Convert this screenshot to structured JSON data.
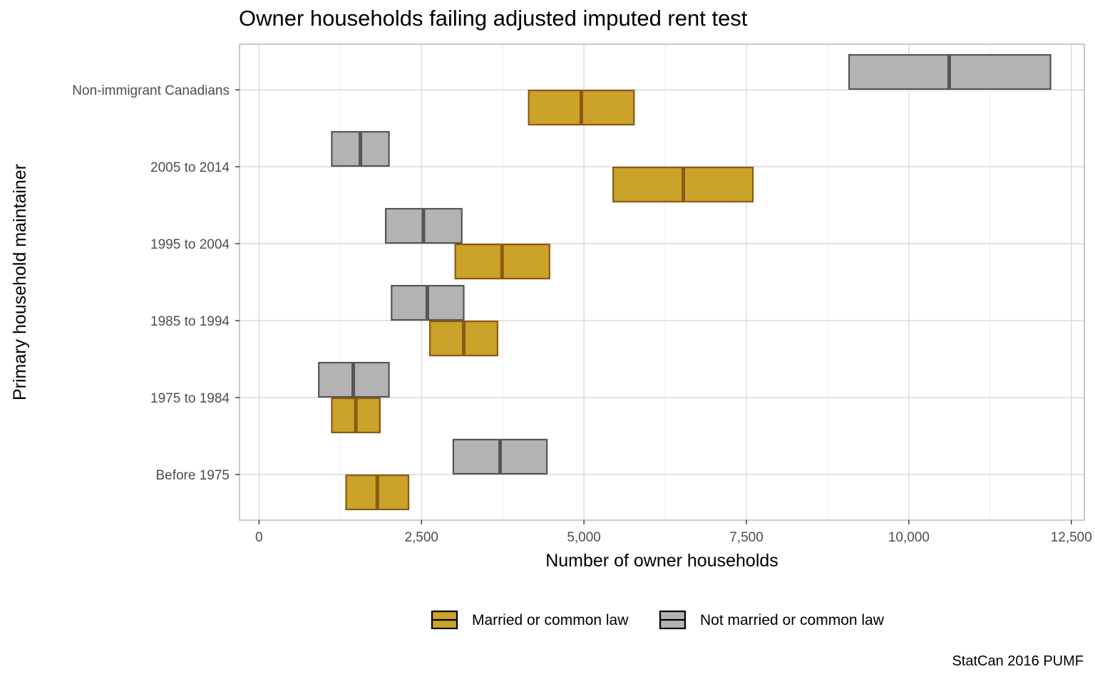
{
  "chart_data": {
    "type": "boxplot",
    "title": "Owner households failing adjusted imputed rent test",
    "xlabel": "Number of owner households",
    "ylabel": "Primary household maintainer",
    "caption": "StatCan 2016 PUMF",
    "xlim": [
      -300,
      12700
    ],
    "x_ticks": [
      0,
      2500,
      5000,
      7500,
      10000,
      12500
    ],
    "x_tick_labels": [
      "0",
      "2,500",
      "5,000",
      "7,500",
      "10,000",
      "12,500"
    ],
    "categories": [
      "Non-immigrant Canadians",
      "2005 to 2014",
      "1995 to 2004",
      "1985 to 1994",
      "1975 to 1984",
      "Before 1975"
    ],
    "grid": true,
    "legend_position": "bottom",
    "colors": {
      "married_fill": "#cba22a",
      "married_stroke": "#8b5a10",
      "not_married_fill": "#b3b3b3",
      "not_married_stroke": "#555555"
    },
    "series": [
      {
        "name": "Married or common law",
        "low": [
          4150,
          5450,
          3020,
          2630,
          1120,
          1340
        ],
        "mid": [
          4960,
          6530,
          3740,
          3150,
          1490,
          1820
        ],
        "high": [
          5770,
          7600,
          4470,
          3670,
          1860,
          2300
        ]
      },
      {
        "name": "Not married or common law",
        "low": [
          9080,
          1120,
          1950,
          2040,
          920,
          2990
        ],
        "mid": [
          10620,
          1560,
          2530,
          2590,
          1450,
          3710
        ],
        "high": [
          12180,
          2000,
          3120,
          3150,
          2000,
          4430
        ]
      }
    ]
  }
}
